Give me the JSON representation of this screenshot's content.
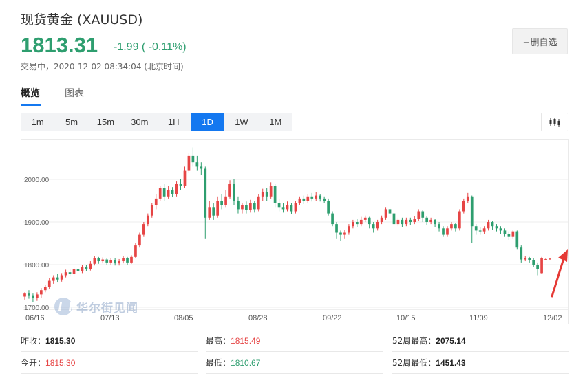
{
  "header": {
    "title": "现货黄金  (XAUUSD)",
    "price": "1813.31",
    "change": "-1.99 ( -0.11%)",
    "status": "交易中，2020-12-02 08:34:04 (北京时间)",
    "watch_button": "−删自选"
  },
  "tabs": [
    {
      "label": "概览",
      "active": true
    },
    {
      "label": "图表",
      "active": false
    }
  ],
  "periods": [
    {
      "label": "1m",
      "active": false
    },
    {
      "label": "5m",
      "active": false
    },
    {
      "label": "15m",
      "active": false
    },
    {
      "label": "30m",
      "active": false
    },
    {
      "label": "1H",
      "active": false
    },
    {
      "label": "1D",
      "active": true
    },
    {
      "label": "1W",
      "active": false
    },
    {
      "label": "1M",
      "active": false
    }
  ],
  "chart_type_icon": "candlestick-icon",
  "watermark": "华尔街见闻",
  "colors": {
    "up": "#e64545",
    "down": "#2e9e6f",
    "accent": "#1478f0",
    "annotation_arrow": "#e53935"
  },
  "chart_data": {
    "type": "candlestick",
    "title": "",
    "xlabel": "",
    "ylabel": "",
    "y_ticks": [
      "1700.00",
      "1800.00",
      "1900.00",
      "2000.00"
    ],
    "ylim": [
      1700,
      2080
    ],
    "x_ticks": [
      "06/16",
      "07/13",
      "08/05",
      "08/28",
      "09/22",
      "10/15",
      "11/09",
      "12/02"
    ],
    "grid": true,
    "series": [
      {
        "ohlc": [
          [
            1725,
            1732,
            1718,
            1735
          ],
          [
            1732,
            1728,
            1720,
            1740
          ],
          [
            1728,
            1722,
            1712,
            1732
          ],
          [
            1722,
            1730,
            1715,
            1735
          ],
          [
            1730,
            1740,
            1722,
            1745
          ],
          [
            1740,
            1748,
            1735,
            1752
          ],
          [
            1748,
            1762,
            1742,
            1768
          ],
          [
            1762,
            1770,
            1755,
            1775
          ],
          [
            1770,
            1765,
            1758,
            1778
          ],
          [
            1765,
            1775,
            1760,
            1780
          ],
          [
            1775,
            1782,
            1770,
            1788
          ],
          [
            1782,
            1778,
            1772,
            1790
          ],
          [
            1778,
            1790,
            1772,
            1795
          ],
          [
            1790,
            1785,
            1778,
            1795
          ],
          [
            1785,
            1795,
            1780,
            1800
          ],
          [
            1795,
            1790,
            1785,
            1800
          ],
          [
            1790,
            1802,
            1786,
            1808
          ],
          [
            1802,
            1815,
            1798,
            1820
          ],
          [
            1815,
            1808,
            1802,
            1818
          ],
          [
            1808,
            1812,
            1803,
            1817
          ],
          [
            1812,
            1805,
            1800,
            1815
          ],
          [
            1805,
            1810,
            1800,
            1815
          ],
          [
            1810,
            1803,
            1798,
            1815
          ],
          [
            1803,
            1808,
            1798,
            1813
          ],
          [
            1808,
            1815,
            1803,
            1820
          ],
          [
            1815,
            1805,
            1800,
            1818
          ],
          [
            1805,
            1818,
            1802,
            1822
          ],
          [
            1818,
            1845,
            1815,
            1850
          ],
          [
            1845,
            1870,
            1840,
            1875
          ],
          [
            1870,
            1895,
            1865,
            1900
          ],
          [
            1895,
            1915,
            1890,
            1920
          ],
          [
            1915,
            1940,
            1910,
            1945
          ],
          [
            1940,
            1955,
            1930,
            1965
          ],
          [
            1955,
            1980,
            1950,
            1985
          ],
          [
            1980,
            1960,
            1950,
            1990
          ],
          [
            1960,
            1975,
            1955,
            1985
          ],
          [
            1975,
            1965,
            1958,
            1982
          ],
          [
            1965,
            1990,
            1960,
            1995
          ],
          [
            1990,
            1985,
            1975,
            2000
          ],
          [
            1985,
            2020,
            1980,
            2030
          ],
          [
            2020,
            2055,
            2015,
            2062
          ],
          [
            2055,
            2040,
            2030,
            2075
          ],
          [
            2040,
            2030,
            2020,
            2055
          ],
          [
            2030,
            2025,
            2010,
            2040
          ],
          [
            2025,
            1910,
            1860,
            2030
          ],
          [
            1910,
            1935,
            1905,
            1950
          ],
          [
            1935,
            1915,
            1905,
            1945
          ],
          [
            1915,
            1950,
            1910,
            1960
          ],
          [
            1950,
            1940,
            1930,
            1965
          ],
          [
            1940,
            1960,
            1935,
            1975
          ],
          [
            1960,
            1990,
            1955,
            1998
          ],
          [
            1990,
            1950,
            1940,
            2000
          ],
          [
            1950,
            1930,
            1920,
            1960
          ],
          [
            1930,
            1940,
            1920,
            1945
          ],
          [
            1940,
            1928,
            1920,
            1948
          ],
          [
            1928,
            1945,
            1922,
            1952
          ],
          [
            1945,
            1930,
            1922,
            1950
          ],
          [
            1930,
            1960,
            1925,
            1965
          ],
          [
            1960,
            1970,
            1950,
            1978
          ],
          [
            1970,
            1960,
            1950,
            1980
          ],
          [
            1960,
            1985,
            1955,
            1993
          ],
          [
            1985,
            1945,
            1935,
            1990
          ],
          [
            1945,
            1935,
            1925,
            1955
          ],
          [
            1935,
            1930,
            1922,
            1945
          ],
          [
            1930,
            1940,
            1925,
            1948
          ],
          [
            1940,
            1925,
            1918,
            1945
          ],
          [
            1925,
            1945,
            1920,
            1950
          ],
          [
            1945,
            1955,
            1940,
            1960
          ],
          [
            1955,
            1950,
            1942,
            1962
          ],
          [
            1950,
            1960,
            1945,
            1965
          ],
          [
            1960,
            1955,
            1948,
            1968
          ],
          [
            1955,
            1962,
            1950,
            1970
          ],
          [
            1962,
            1955,
            1948,
            1965
          ],
          [
            1955,
            1950,
            1945,
            1960
          ],
          [
            1950,
            1920,
            1915,
            1955
          ],
          [
            1920,
            1895,
            1890,
            1925
          ],
          [
            1895,
            1875,
            1860,
            1900
          ],
          [
            1875,
            1870,
            1855,
            1880
          ],
          [
            1870,
            1875,
            1860,
            1882
          ],
          [
            1875,
            1890,
            1870,
            1895
          ],
          [
            1890,
            1900,
            1885,
            1905
          ],
          [
            1900,
            1895,
            1888,
            1908
          ],
          [
            1895,
            1905,
            1890,
            1912
          ],
          [
            1905,
            1910,
            1900,
            1915
          ],
          [
            1910,
            1895,
            1885,
            1912
          ],
          [
            1895,
            1885,
            1875,
            1900
          ],
          [
            1885,
            1900,
            1880,
            1905
          ],
          [
            1900,
            1910,
            1895,
            1915
          ],
          [
            1910,
            1930,
            1905,
            1935
          ],
          [
            1930,
            1920,
            1910,
            1935
          ],
          [
            1920,
            1895,
            1885,
            1925
          ],
          [
            1895,
            1905,
            1890,
            1910
          ],
          [
            1905,
            1895,
            1888,
            1910
          ],
          [
            1895,
            1905,
            1890,
            1910
          ],
          [
            1905,
            1900,
            1893,
            1910
          ],
          [
            1900,
            1908,
            1895,
            1913
          ],
          [
            1908,
            1925,
            1903,
            1930
          ],
          [
            1925,
            1910,
            1900,
            1928
          ],
          [
            1910,
            1900,
            1893,
            1913
          ],
          [
            1900,
            1905,
            1895,
            1910
          ],
          [
            1905,
            1895,
            1888,
            1908
          ],
          [
            1895,
            1885,
            1878,
            1900
          ],
          [
            1885,
            1870,
            1865,
            1890
          ],
          [
            1870,
            1885,
            1865,
            1890
          ],
          [
            1885,
            1895,
            1880,
            1900
          ],
          [
            1895,
            1885,
            1878,
            1898
          ],
          [
            1885,
            1925,
            1880,
            1930
          ],
          [
            1925,
            1950,
            1920,
            1955
          ],
          [
            1950,
            1960,
            1945,
            1968
          ],
          [
            1960,
            1890,
            1850,
            1962
          ],
          [
            1890,
            1880,
            1870,
            1895
          ],
          [
            1880,
            1878,
            1870,
            1888
          ],
          [
            1878,
            1885,
            1872,
            1890
          ],
          [
            1885,
            1900,
            1880,
            1905
          ],
          [
            1900,
            1890,
            1882,
            1903
          ],
          [
            1890,
            1885,
            1878,
            1895
          ],
          [
            1885,
            1880,
            1872,
            1890
          ],
          [
            1880,
            1872,
            1865,
            1885
          ],
          [
            1872,
            1865,
            1858,
            1878
          ],
          [
            1865,
            1878,
            1860,
            1882
          ],
          [
            1878,
            1840,
            1835,
            1880
          ],
          [
            1840,
            1812,
            1805,
            1845
          ],
          [
            1812,
            1815,
            1808,
            1820
          ],
          [
            1815,
            1810,
            1805,
            1818
          ],
          [
            1810,
            1800,
            1795,
            1815
          ],
          [
            1800,
            1790,
            1775,
            1805
          ],
          [
            1780,
            1815,
            1778,
            1818
          ],
          [
            1812,
            1813,
            1810,
            1815
          ],
          [
            1813,
            1814,
            1811,
            1815
          ]
        ]
      }
    ]
  },
  "stats": {
    "prev_close_label": "昨收：",
    "prev_close": "1815.30",
    "high_label": "最高：",
    "high": "1815.49",
    "high52_label": "52周最高：",
    "high52": "2075.14",
    "open_label": "今开：",
    "open": "1815.30",
    "low_label": "最低：",
    "low": "1810.67",
    "low52_label": "52周最低：",
    "low52": "1451.43"
  }
}
